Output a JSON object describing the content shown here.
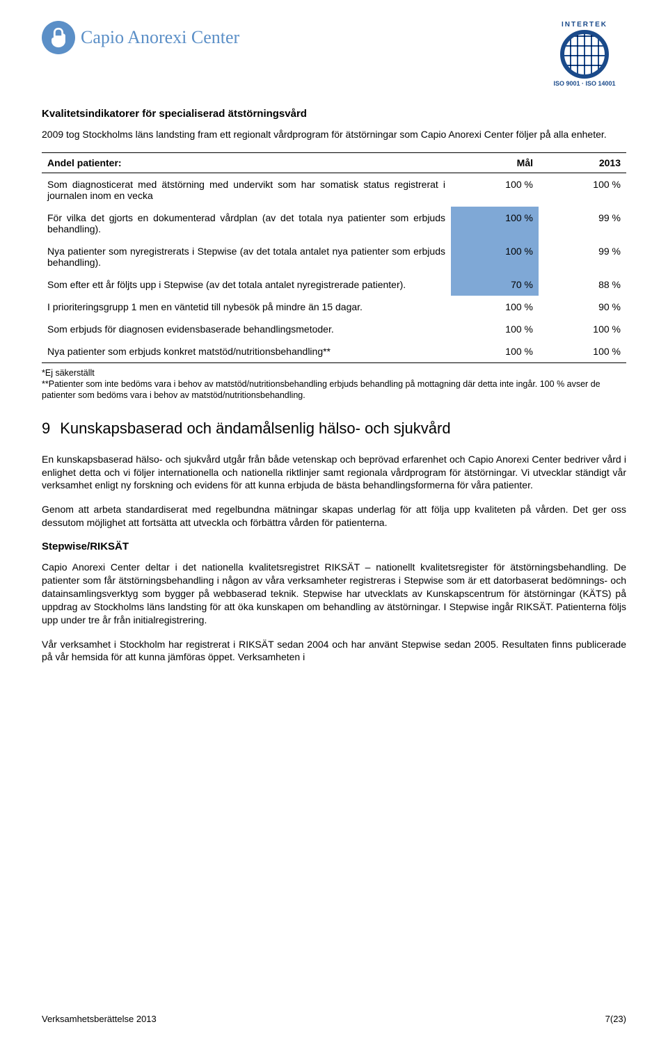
{
  "logo": {
    "brand": "Capio Anorexi Center"
  },
  "cert": {
    "top": "INTERTEK",
    "bottom": "ISO 9001 · ISO 14001"
  },
  "section1": {
    "title": "Kvalitetsindikatorer för specialiserad ätstörningsvård",
    "intro": "2009 tog Stockholms läns landsting fram ett regionalt vårdprogram för ätstörningar som Capio Anorexi Center följer på alla enheter."
  },
  "table": {
    "columns": [
      "Andel patienter:",
      "Mål",
      "2013"
    ],
    "col_widths": [
      "70%",
      "15%",
      "15%"
    ],
    "highlight_color": "#7fa8d6",
    "rows": [
      {
        "desc": "Som diagnosticerat med ätstörning med undervikt som har somatisk status registrerat i journalen inom en vecka",
        "mal": "100 %",
        "y2013": "100 %",
        "highlight": false
      },
      {
        "desc": "För vilka det gjorts en dokumenterad vårdplan (av det totala nya patienter som erbjuds behandling).",
        "mal": "100 %",
        "y2013": "99 %",
        "highlight": true
      },
      {
        "desc": "Nya patienter som nyregistrerats i Stepwise (av det totala antalet nya patienter som erbjuds behandling).",
        "mal": "100 %",
        "y2013": "99 %",
        "highlight": true
      },
      {
        "desc": "Som efter ett år följts upp i Stepwise (av det totala antalet nyregistrerade patienter).",
        "mal": "70 %",
        "y2013": "88 %",
        "highlight": true
      },
      {
        "desc": "I prioriteringsgrupp 1 men en väntetid till nybesök på mindre än 15 dagar.",
        "mal": "100 %",
        "y2013": "90 %",
        "highlight": false
      },
      {
        "desc": "Som erbjuds för diagnosen evidensbaserade behandlingsmetoder.",
        "mal": "100 %",
        "y2013": "100 %",
        "highlight": false
      },
      {
        "desc": "Nya patienter som erbjuds konkret matstöd/nutritionsbehandling**",
        "mal": "100 %",
        "y2013": "100 %",
        "highlight": false
      }
    ]
  },
  "footnote": "*Ej säkerställt\n**Patienter som inte bedöms vara i behov av matstöd/nutritionsbehandling erbjuds behandling på mottagning där detta inte ingår. 100 % avser de patienter som bedöms vara i behov av matstöd/nutritionsbehandling.",
  "section9": {
    "num": "9",
    "title": "Kunskapsbaserad och ändamålsenlig hälso- och sjukvård",
    "p1": "En kunskapsbaserad hälso- och sjukvård utgår från både vetenskap och beprövad erfarenhet och Capio Anorexi Center bedriver vård i enlighet detta och vi följer internationella och nationella riktlinjer samt regionala vårdprogram för ätstörningar. Vi utvecklar ständigt vår verksamhet enligt ny forskning och evidens för att kunna erbjuda de bästa behandlingsformerna för våra patienter.",
    "p2": "Genom att arbeta standardiserat med regelbundna mätningar skapas underlag för att följa upp kvaliteten på vården. Det ger oss dessutom möjlighet att fortsätta att utveckla och förbättra vården för patienterna.",
    "sub": "Stepwise/RIKSÄT",
    "p3": "Capio Anorexi Center deltar i det nationella kvalitetsregistret RIKSÄT – nationellt kvalitetsregister för ätstörningsbehandling. De patienter som får ätstörningsbehandling i någon av våra verksamheter registreras i Stepwise som är ett datorbaserat bedömnings- och datainsamlingsverktyg som bygger på webbaserad teknik. Stepwise har utvecklats av Kunskapscentrum för ätstörningar (KÄTS) på uppdrag av Stockholms läns landsting för att öka kunskapen om behandling av ätstörningar. I Stepwise ingår RIKSÄT. Patienterna följs upp under tre år från initialregistrering.",
    "p4": "Vår verksamhet i Stockholm har registrerat i RIKSÄT sedan 2004 och har använt Stepwise sedan 2005. Resultaten finns publicerade på vår hemsida för att kunna jämföras öppet. Verksamheten i"
  },
  "footer": {
    "left": "Verksamhetsberättelse 2013",
    "right": "7(23)"
  }
}
